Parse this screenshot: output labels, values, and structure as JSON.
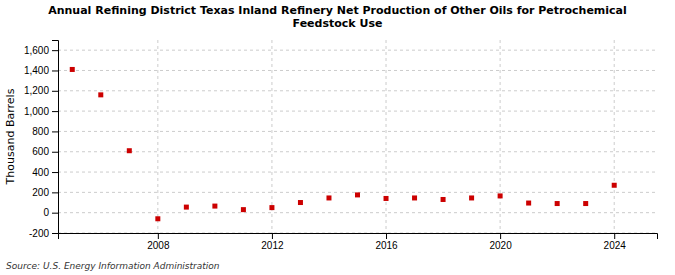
{
  "chart_data": {
    "type": "scatter",
    "title": "Annual Refining District Texas Inland Refinery Net Production of Other Oils for Petrochemical\nFeedstock Use",
    "ylabel": "Thousand Barrels",
    "annotations": [
      "Source: U.S. Energy Information Administration"
    ],
    "x": [
      2005,
      2006,
      2007,
      2008,
      2009,
      2010,
      2011,
      2012,
      2013,
      2014,
      2015,
      2016,
      2017,
      2018,
      2019,
      2020,
      2021,
      2022,
      2023,
      2024
    ],
    "values": [
      1410,
      1160,
      610,
      -60,
      55,
      65,
      30,
      50,
      100,
      145,
      175,
      140,
      145,
      130,
      145,
      165,
      95,
      90,
      90,
      270
    ],
    "color": "#cc0000",
    "marker": "square",
    "xlim": [
      2004.5,
      2025.5
    ],
    "xticks": [
      2008,
      2012,
      2016,
      2020,
      2024
    ],
    "ylim": [
      -200,
      1700
    ],
    "yticks": [
      -200,
      0,
      200,
      400,
      600,
      800,
      {
        "value": 1000,
        "label": "1,000"
      },
      {
        "value": 1200,
        "label": "1,200"
      },
      {
        "value": 1400,
        "label": "1,400"
      },
      {
        "value": 1600,
        "label": "1,600"
      }
    ],
    "grid": true
  }
}
